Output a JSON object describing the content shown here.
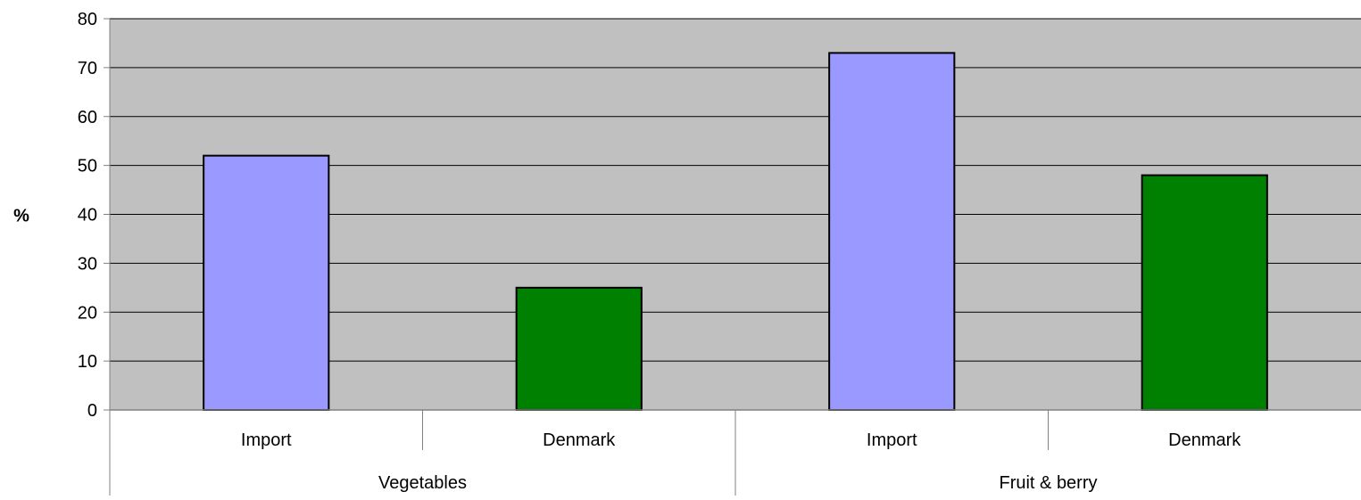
{
  "chart_data": {
    "type": "bar",
    "ylabel": "%",
    "xlabel": "",
    "ylim": [
      0,
      80
    ],
    "y_ticks": [
      "0",
      "10",
      "20",
      "30",
      "40",
      "50",
      "60",
      "70",
      "80"
    ],
    "grid": true,
    "groups": [
      {
        "label": "Vegetables",
        "bars": [
          {
            "label": "Import",
            "value": 52,
            "color": "#9999ff"
          },
          {
            "label": "Denmark",
            "value": 25,
            "color": "#008000"
          }
        ]
      },
      {
        "label": "Fruit & berry",
        "bars": [
          {
            "label": "Import",
            "value": 73,
            "color": "#9999ff"
          },
          {
            "label": "Denmark",
            "value": 48,
            "color": "#008000"
          }
        ]
      }
    ],
    "plot_background": "#c0c0c0"
  }
}
